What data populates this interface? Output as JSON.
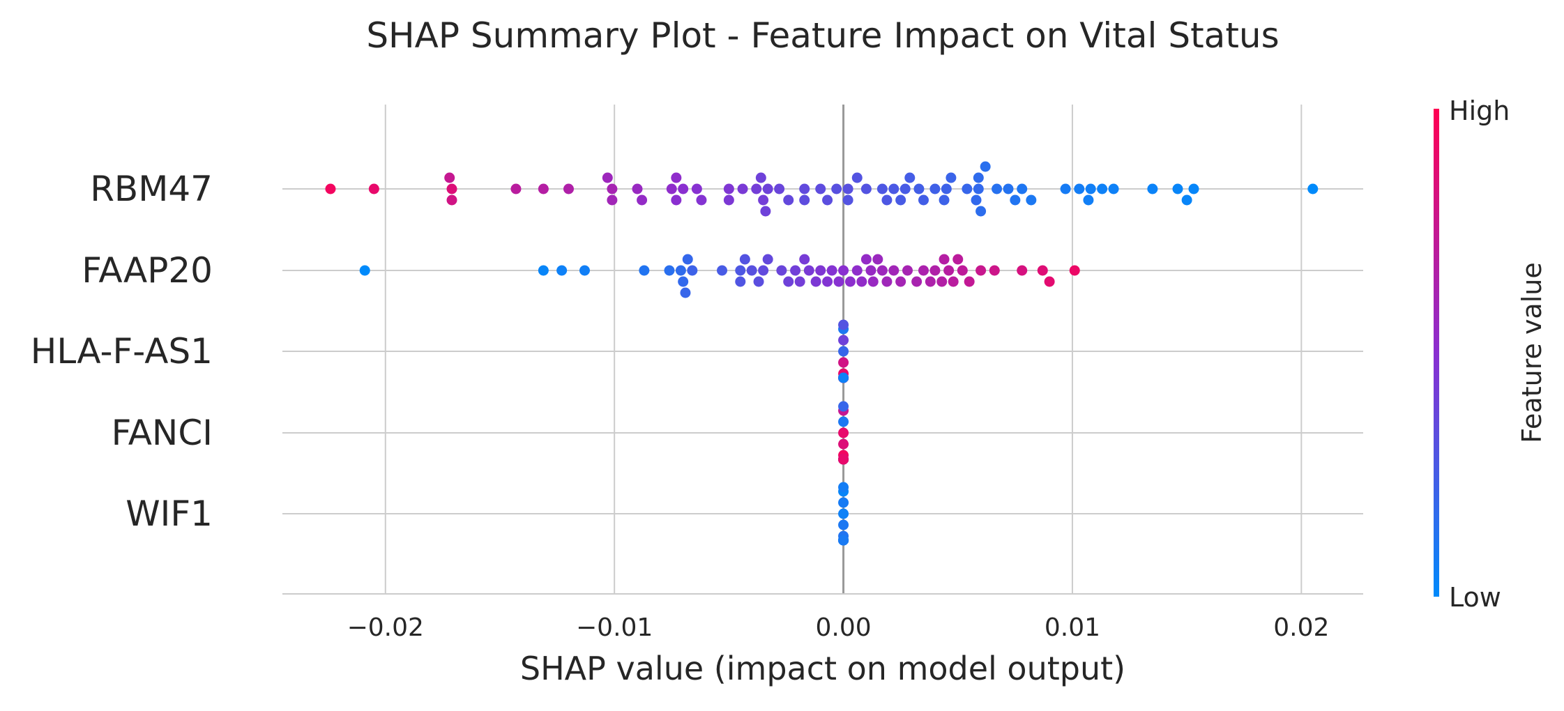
{
  "chart_data": {
    "type": "scatter",
    "title": "SHAP Summary Plot - Feature Impact on Vital Status",
    "xlabel": "SHAP value (impact on model output)",
    "xlim": [
      -0.0245,
      0.0227
    ],
    "xticks": [
      -0.02,
      -0.01,
      0.0,
      0.01,
      0.02
    ],
    "xtick_labels": [
      "−0.02",
      "−0.01",
      "0.00",
      "0.01",
      "0.02"
    ],
    "grid": true,
    "colorbar": {
      "label": "Feature value",
      "high": "High",
      "low": "Low"
    },
    "colors": {
      "low": "#008afb",
      "high": "#ff0052",
      "grid": "#cccccc",
      "zero_line": "#999999",
      "text": "#262626"
    },
    "features": [
      {
        "name": "RBM47",
        "points": [
          [
            -0.0224,
            0.95
          ],
          [
            -0.0205,
            0.9
          ],
          [
            -0.0171,
            0.85
          ],
          [
            -0.0171,
            0.8
          ],
          [
            -0.0172,
            0.75
          ],
          [
            -0.0143,
            0.7
          ],
          [
            -0.0131,
            0.68
          ],
          [
            -0.012,
            0.66
          ],
          [
            -0.0101,
            0.62
          ],
          [
            -0.0101,
            0.6
          ],
          [
            -0.0103,
            0.58
          ],
          [
            -0.009,
            0.56
          ],
          [
            -0.0088,
            0.54
          ],
          [
            -0.0075,
            0.52
          ],
          [
            -0.0073,
            0.5
          ],
          [
            -0.0073,
            0.52
          ],
          [
            -0.007,
            0.5
          ],
          [
            -0.0064,
            0.49
          ],
          [
            -0.0062,
            0.48
          ],
          [
            -0.005,
            0.46
          ],
          [
            -0.005,
            0.45
          ],
          [
            -0.0044,
            0.44
          ],
          [
            -0.0038,
            0.42
          ],
          [
            -0.0035,
            0.42
          ],
          [
            -0.0036,
            0.4
          ],
          [
            -0.0034,
            0.4
          ],
          [
            -0.0033,
            0.4
          ],
          [
            -0.0028,
            0.38
          ],
          [
            -0.0024,
            0.36
          ],
          [
            -0.0017,
            0.35
          ],
          [
            -0.0017,
            0.34
          ],
          [
            -0.001,
            0.34
          ],
          [
            -0.0007,
            0.33
          ],
          [
            -0.0003,
            0.32
          ],
          [
            0.0002,
            0.32
          ],
          [
            0.0002,
            0.3
          ],
          [
            0.0006,
            0.3
          ],
          [
            0.001,
            0.3
          ],
          [
            0.0017,
            0.28
          ],
          [
            0.0019,
            0.28
          ],
          [
            0.0022,
            0.27
          ],
          [
            0.0025,
            0.26
          ],
          [
            0.0027,
            0.26
          ],
          [
            0.0029,
            0.25
          ],
          [
            0.0033,
            0.24
          ],
          [
            0.0035,
            0.24
          ],
          [
            0.004,
            0.23
          ],
          [
            0.0044,
            0.22
          ],
          [
            0.0045,
            0.22
          ],
          [
            0.0047,
            0.21
          ],
          [
            0.0054,
            0.2
          ],
          [
            0.0059,
            0.18
          ],
          [
            0.0058,
            0.18
          ],
          [
            0.0059,
            0.17
          ],
          [
            0.006,
            0.16
          ],
          [
            0.0062,
            0.15
          ],
          [
            0.0067,
            0.14
          ],
          [
            0.0072,
            0.13
          ],
          [
            0.0075,
            0.12
          ],
          [
            0.0078,
            0.11
          ],
          [
            0.0082,
            0.1
          ],
          [
            0.0097,
            0.08
          ],
          [
            0.0103,
            0.07
          ],
          [
            0.0107,
            0.06
          ],
          [
            0.0108,
            0.06
          ],
          [
            0.0113,
            0.05
          ],
          [
            0.0118,
            0.05
          ],
          [
            0.0135,
            0.04
          ],
          [
            0.0146,
            0.03
          ],
          [
            0.015,
            0.03
          ],
          [
            0.0153,
            0.02
          ],
          [
            0.0205,
            0.0
          ]
        ]
      },
      {
        "name": "FAAP20",
        "points": [
          [
            -0.0209,
            0.0
          ],
          [
            -0.0131,
            0.03
          ],
          [
            -0.0123,
            0.05
          ],
          [
            -0.0113,
            0.06
          ],
          [
            -0.0087,
            0.12
          ],
          [
            -0.0076,
            0.15
          ],
          [
            -0.0071,
            0.17
          ],
          [
            -0.007,
            0.18
          ],
          [
            -0.0068,
            0.19
          ],
          [
            -0.0069,
            0.2
          ],
          [
            -0.0066,
            0.22
          ],
          [
            -0.0053,
            0.26
          ],
          [
            -0.0045,
            0.28
          ],
          [
            -0.0045,
            0.29
          ],
          [
            -0.0043,
            0.3
          ],
          [
            -0.004,
            0.32
          ],
          [
            -0.0037,
            0.33
          ],
          [
            -0.0035,
            0.35
          ],
          [
            -0.0033,
            0.36
          ],
          [
            -0.0027,
            0.38
          ],
          [
            -0.0024,
            0.4
          ],
          [
            -0.0021,
            0.41
          ],
          [
            -0.0019,
            0.42
          ],
          [
            -0.0017,
            0.43
          ],
          [
            -0.0015,
            0.44
          ],
          [
            -0.0012,
            0.45
          ],
          [
            -0.001,
            0.46
          ],
          [
            -0.0007,
            0.47
          ],
          [
            -0.0005,
            0.48
          ],
          [
            -0.0002,
            0.49
          ],
          [
            0.0,
            0.5
          ],
          [
            0.0003,
            0.51
          ],
          [
            0.0006,
            0.52
          ],
          [
            0.0008,
            0.53
          ],
          [
            0.001,
            0.54
          ],
          [
            0.0012,
            0.55
          ],
          [
            0.0013,
            0.56
          ],
          [
            0.0015,
            0.57
          ],
          [
            0.0017,
            0.58
          ],
          [
            0.0019,
            0.59
          ],
          [
            0.0022,
            0.6
          ],
          [
            0.0025,
            0.61
          ],
          [
            0.0028,
            0.62
          ],
          [
            0.0032,
            0.63
          ],
          [
            0.0035,
            0.64
          ],
          [
            0.0038,
            0.65
          ],
          [
            0.004,
            0.66
          ],
          [
            0.0043,
            0.67
          ],
          [
            0.0044,
            0.68
          ],
          [
            0.0046,
            0.69
          ],
          [
            0.0048,
            0.7
          ],
          [
            0.005,
            0.71
          ],
          [
            0.0052,
            0.72
          ],
          [
            0.0055,
            0.74
          ],
          [
            0.006,
            0.76
          ],
          [
            0.0066,
            0.78
          ],
          [
            0.0078,
            0.82
          ],
          [
            0.0087,
            0.86
          ],
          [
            0.009,
            0.88
          ],
          [
            0.0101,
            0.92
          ]
        ]
      },
      {
        "name": "HLA-F-AS1",
        "points": [
          [
            0.0,
            0.2
          ],
          [
            0.0,
            0.8
          ],
          [
            0.0,
            0.4
          ],
          [
            0.0,
            0.9
          ],
          [
            0.0,
            0.1
          ],
          [
            0.0,
            0.6
          ],
          [
            0.0,
            0.3
          ],
          [
            0.0,
            0.7
          ],
          [
            0.0,
            0.5
          ],
          [
            0.0,
            0.2
          ],
          [
            0.0,
            0.85
          ],
          [
            0.0,
            0.45
          ],
          [
            0.0,
            0.15
          ],
          [
            0.0,
            0.65
          ],
          [
            0.0,
            0.35
          ],
          [
            0.0,
            0.75
          ],
          [
            0.0,
            0.25
          ],
          [
            0.0,
            0.55
          ],
          [
            0.0,
            0.95
          ],
          [
            0.0,
            0.05
          ]
        ]
      },
      {
        "name": "FANCI",
        "points": [
          [
            0.0,
            0.9
          ],
          [
            0.0,
            0.85
          ],
          [
            0.0,
            0.1
          ],
          [
            0.0,
            0.95
          ],
          [
            0.0,
            0.75
          ],
          [
            0.0,
            0.8
          ],
          [
            0.0,
            0.2
          ],
          [
            0.0,
            0.9
          ],
          [
            0.0,
            0.7
          ],
          [
            0.0,
            0.88
          ],
          [
            0.0,
            0.3
          ],
          [
            0.0,
            0.92
          ],
          [
            0.0,
            0.82
          ],
          [
            0.0,
            0.65
          ],
          [
            0.0,
            0.97
          ],
          [
            0.0,
            0.78
          ],
          [
            0.0,
            0.15
          ],
          [
            0.0,
            0.86
          ],
          [
            0.0,
            0.6
          ],
          [
            0.0,
            0.9
          ]
        ]
      },
      {
        "name": "WIF1",
        "points": [
          [
            0.0,
            0.05
          ],
          [
            0.0,
            0.1
          ],
          [
            0.0,
            0.08
          ],
          [
            0.0,
            0.12
          ],
          [
            0.0,
            0.03
          ],
          [
            0.0,
            0.15
          ],
          [
            0.0,
            0.07
          ],
          [
            0.0,
            0.1
          ],
          [
            0.0,
            0.06
          ],
          [
            0.0,
            0.8
          ],
          [
            0.0,
            0.09
          ],
          [
            0.0,
            0.04
          ],
          [
            0.0,
            0.11
          ],
          [
            0.0,
            0.13
          ],
          [
            0.0,
            0.02
          ],
          [
            0.0,
            0.08
          ],
          [
            0.0,
            0.14
          ],
          [
            0.0,
            0.06
          ],
          [
            0.0,
            0.1
          ],
          [
            0.0,
            0.05
          ],
          [
            0.0,
            0.07
          ],
          [
            0.0,
            0.09
          ]
        ]
      }
    ]
  }
}
